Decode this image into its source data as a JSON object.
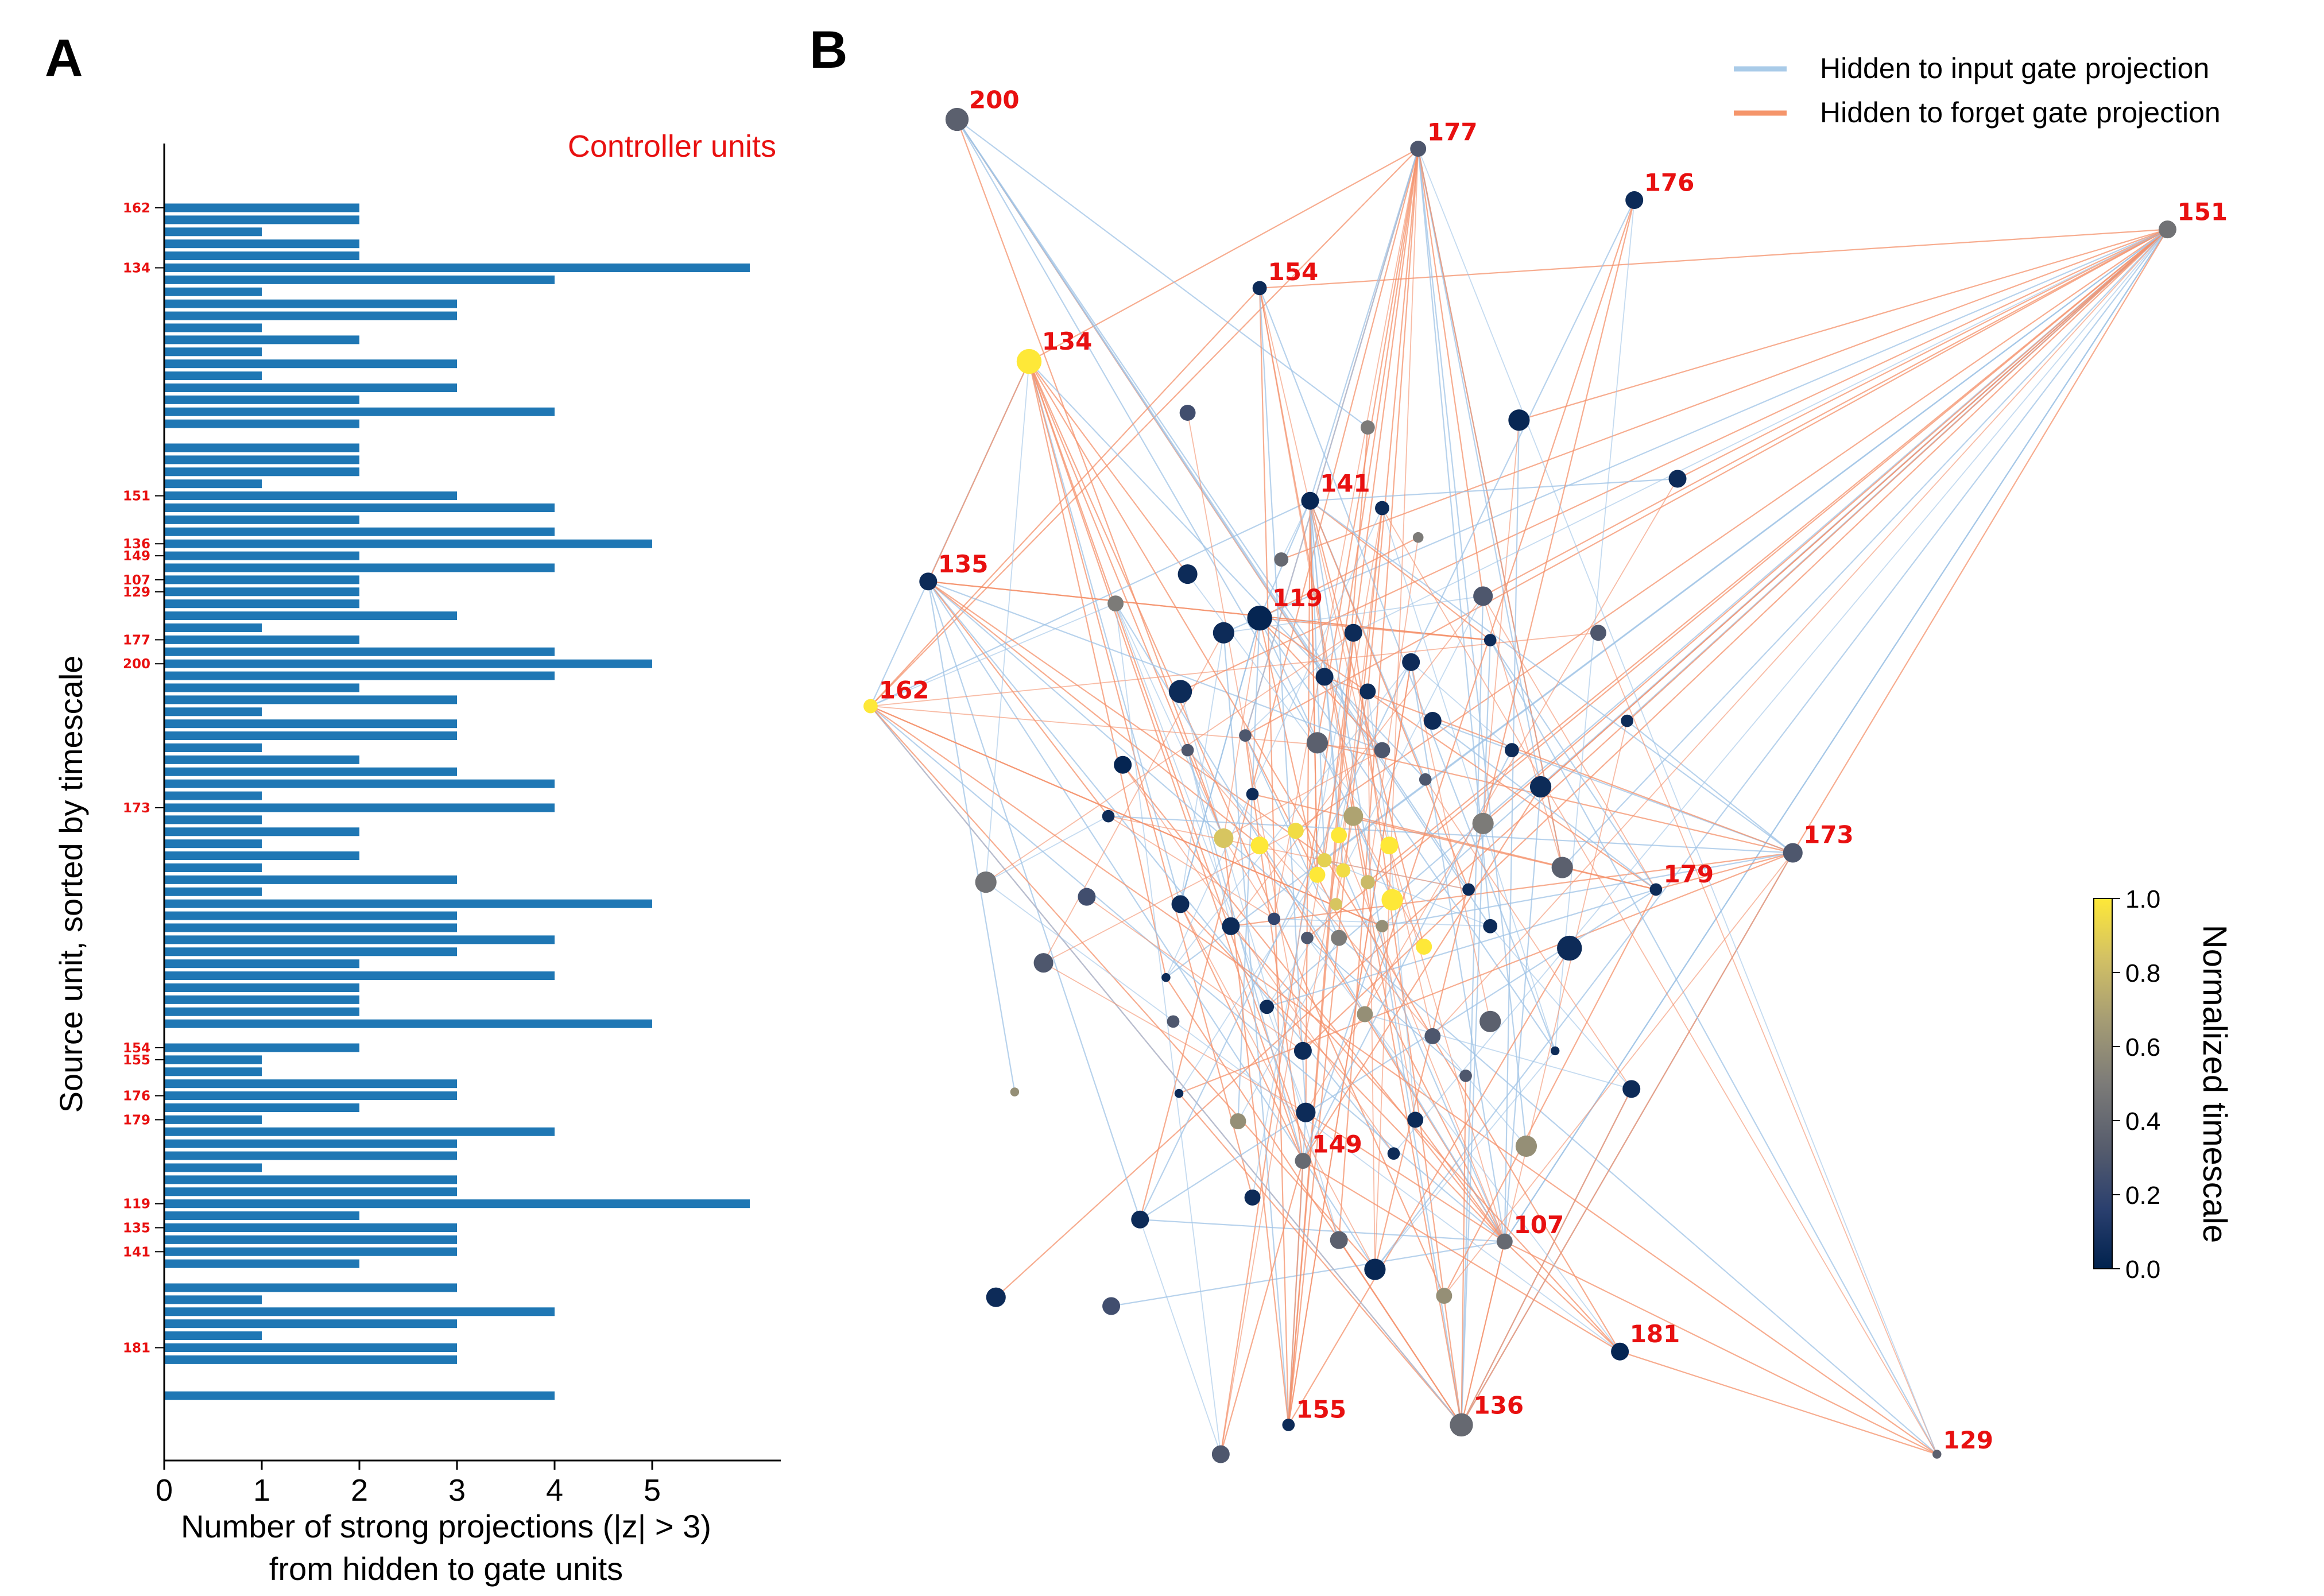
{
  "panel_a_letter": "A",
  "panel_b_letter": "B",
  "chart_data": [
    {
      "type": "bar",
      "orientation": "horizontal",
      "panel": "A",
      "annotation": "Controller units",
      "xlabel_line1": "Number of strong projections (|z| > 3)",
      "xlabel_line2": "from hidden to gate units",
      "ylabel": "Source unit, sorted by timescale",
      "xlim": [
        0,
        6.3
      ],
      "xticks": [
        0,
        1,
        2,
        3,
        4,
        5
      ],
      "ylim_slots": [
        -5,
        104.5
      ],
      "bar_color": "#1f77b4",
      "bars": [
        {
          "slot": 0,
          "value": 2,
          "label": "162"
        },
        {
          "slot": 1,
          "value": 2
        },
        {
          "slot": 2,
          "value": 1
        },
        {
          "slot": 3,
          "value": 2
        },
        {
          "slot": 4,
          "value": 2
        },
        {
          "slot": 5,
          "value": 6,
          "label": "134"
        },
        {
          "slot": 6,
          "value": 4
        },
        {
          "slot": 7,
          "value": 1
        },
        {
          "slot": 8,
          "value": 3
        },
        {
          "slot": 9,
          "value": 3
        },
        {
          "slot": 10,
          "value": 1
        },
        {
          "slot": 11,
          "value": 2
        },
        {
          "slot": 12,
          "value": 1
        },
        {
          "slot": 13,
          "value": 3
        },
        {
          "slot": 14,
          "value": 1
        },
        {
          "slot": 15,
          "value": 3
        },
        {
          "slot": 16,
          "value": 2
        },
        {
          "slot": 17,
          "value": 4
        },
        {
          "slot": 18,
          "value": 2
        },
        {
          "slot": 20,
          "value": 2
        },
        {
          "slot": 21,
          "value": 2
        },
        {
          "slot": 22,
          "value": 2
        },
        {
          "slot": 23,
          "value": 1
        },
        {
          "slot": 24,
          "value": 3,
          "label": "151"
        },
        {
          "slot": 25,
          "value": 4
        },
        {
          "slot": 26,
          "value": 2
        },
        {
          "slot": 27,
          "value": 4
        },
        {
          "slot": 28,
          "value": 5,
          "label": "136"
        },
        {
          "slot": 29,
          "value": 2,
          "label": "149"
        },
        {
          "slot": 30,
          "value": 4
        },
        {
          "slot": 31,
          "value": 2,
          "label": "107"
        },
        {
          "slot": 32,
          "value": 2,
          "label": "129"
        },
        {
          "slot": 33,
          "value": 2
        },
        {
          "slot": 34,
          "value": 3
        },
        {
          "slot": 35,
          "value": 1
        },
        {
          "slot": 36,
          "value": 2,
          "label": "177"
        },
        {
          "slot": 37,
          "value": 4
        },
        {
          "slot": 38,
          "value": 5,
          "label": "200"
        },
        {
          "slot": 39,
          "value": 4
        },
        {
          "slot": 40,
          "value": 2
        },
        {
          "slot": 41,
          "value": 3
        },
        {
          "slot": 42,
          "value": 1
        },
        {
          "slot": 43,
          "value": 3
        },
        {
          "slot": 44,
          "value": 3
        },
        {
          "slot": 45,
          "value": 1
        },
        {
          "slot": 46,
          "value": 2
        },
        {
          "slot": 47,
          "value": 3
        },
        {
          "slot": 48,
          "value": 4
        },
        {
          "slot": 49,
          "value": 1
        },
        {
          "slot": 50,
          "value": 4,
          "label": "173"
        },
        {
          "slot": 51,
          "value": 1
        },
        {
          "slot": 52,
          "value": 2
        },
        {
          "slot": 53,
          "value": 1
        },
        {
          "slot": 54,
          "value": 2
        },
        {
          "slot": 55,
          "value": 1
        },
        {
          "slot": 56,
          "value": 3
        },
        {
          "slot": 57,
          "value": 1
        },
        {
          "slot": 58,
          "value": 5
        },
        {
          "slot": 59,
          "value": 3
        },
        {
          "slot": 60,
          "value": 3
        },
        {
          "slot": 61,
          "value": 4
        },
        {
          "slot": 62,
          "value": 3
        },
        {
          "slot": 63,
          "value": 2
        },
        {
          "slot": 64,
          "value": 4
        },
        {
          "slot": 65,
          "value": 2
        },
        {
          "slot": 66,
          "value": 2
        },
        {
          "slot": 67,
          "value": 2
        },
        {
          "slot": 68,
          "value": 5
        },
        {
          "slot": 70,
          "value": 2,
          "label": "154"
        },
        {
          "slot": 71,
          "value": 1,
          "label": "155"
        },
        {
          "slot": 72,
          "value": 1
        },
        {
          "slot": 73,
          "value": 3
        },
        {
          "slot": 74,
          "value": 3,
          "label": "176"
        },
        {
          "slot": 75,
          "value": 2
        },
        {
          "slot": 76,
          "value": 1,
          "label": "179"
        },
        {
          "slot": 77,
          "value": 4
        },
        {
          "slot": 78,
          "value": 3
        },
        {
          "slot": 79,
          "value": 3
        },
        {
          "slot": 80,
          "value": 1
        },
        {
          "slot": 81,
          "value": 3
        },
        {
          "slot": 82,
          "value": 3
        },
        {
          "slot": 83,
          "value": 6,
          "label": "119"
        },
        {
          "slot": 84,
          "value": 2
        },
        {
          "slot": 85,
          "value": 3,
          "label": "135"
        },
        {
          "slot": 86,
          "value": 3
        },
        {
          "slot": 87,
          "value": 3,
          "label": "141"
        },
        {
          "slot": 88,
          "value": 2
        },
        {
          "slot": 90,
          "value": 3
        },
        {
          "slot": 91,
          "value": 1
        },
        {
          "slot": 92,
          "value": 4
        },
        {
          "slot": 93,
          "value": 3
        },
        {
          "slot": 94,
          "value": 1
        },
        {
          "slot": 95,
          "value": 3,
          "label": "181"
        },
        {
          "slot": 96,
          "value": 3
        },
        {
          "slot": 99,
          "value": 4
        }
      ]
    },
    {
      "type": "network",
      "panel": "B",
      "legend": [
        {
          "label": "Hidden to input gate projection",
          "color": "#a9cbe8"
        },
        {
          "label": "Hidden to forget gate projection",
          "color": "#f5956a"
        }
      ],
      "colorbar": {
        "label": "Normalized timescale",
        "ticks": [
          "0.0",
          "0.2",
          "0.4",
          "0.6",
          "0.8",
          "1.0"
        ],
        "colormap": [
          "#00224e",
          "#2a3f6e",
          "#575d6d",
          "#7c7b78",
          "#a59c74",
          "#d3c164",
          "#fee838"
        ]
      },
      "labeled_nodes": [
        {
          "id": "200",
          "x": 64,
          "y": 8,
          "t": 0.35,
          "s": 13
        },
        {
          "id": "177",
          "x": 96,
          "y": 10,
          "t": 0.3,
          "s": 9
        },
        {
          "id": "176",
          "x": 111,
          "y": 13.5,
          "t": 0.05,
          "s": 10
        },
        {
          "id": "151",
          "x": 148,
          "y": 15.5,
          "t": 0.45,
          "s": 10
        },
        {
          "id": "154",
          "x": 85,
          "y": 19.5,
          "t": 0.05,
          "s": 8
        },
        {
          "id": "134",
          "x": 69,
          "y": 24.5,
          "t": 1.0,
          "s": 14
        },
        {
          "id": "141",
          "x": 88.5,
          "y": 34,
          "t": 0.03,
          "s": 10
        },
        {
          "id": "135",
          "x": 62,
          "y": 39.5,
          "t": 0.05,
          "s": 10
        },
        {
          "id": "119",
          "x": 85,
          "y": 42,
          "t": 0.02,
          "s": 14
        },
        {
          "id": "162",
          "x": 58,
          "y": 48,
          "t": 1.0,
          "s": 8
        },
        {
          "id": "173",
          "x": 122,
          "y": 58,
          "t": 0.3,
          "s": 11
        },
        {
          "id": "179",
          "x": 112.5,
          "y": 60.5,
          "t": 0.05,
          "s": 7
        },
        {
          "id": "149",
          "x": 88,
          "y": 79,
          "t": 0.4,
          "s": 9
        },
        {
          "id": "107",
          "x": 102,
          "y": 84.5,
          "t": 0.4,
          "s": 9
        },
        {
          "id": "181",
          "x": 110,
          "y": 92,
          "t": 0.02,
          "s": 10
        },
        {
          "id": "155",
          "x": 87,
          "y": 97,
          "t": 0.05,
          "s": 7
        },
        {
          "id": "136",
          "x": 99,
          "y": 97,
          "t": 0.4,
          "s": 13
        },
        {
          "id": "129",
          "x": 132,
          "y": 99,
          "t": 0.35,
          "s": 5
        }
      ],
      "other_nodes": [
        [
          80,
          28,
          0.25,
          9
        ],
        [
          92.5,
          29,
          0.5,
          8
        ],
        [
          103,
          28.5,
          0.03,
          12
        ],
        [
          114,
          32.5,
          0.05,
          10
        ],
        [
          93.5,
          34.5,
          0.05,
          8
        ],
        [
          86.5,
          38,
          0.4,
          8
        ],
        [
          96,
          36.5,
          0.5,
          6
        ],
        [
          80,
          39,
          0.05,
          11
        ],
        [
          75,
          41,
          0.5,
          9
        ],
        [
          100.5,
          40.5,
          0.3,
          11
        ],
        [
          82.5,
          43,
          0.05,
          12
        ],
        [
          91.5,
          43,
          0.05,
          10
        ],
        [
          101,
          43.5,
          0.05,
          7
        ],
        [
          108.5,
          43,
          0.3,
          9
        ],
        [
          95.5,
          45,
          0.05,
          10
        ],
        [
          89.5,
          46,
          0.05,
          10
        ],
        [
          92.5,
          47,
          0.05,
          9
        ],
        [
          79.5,
          47,
          0.05,
          13
        ],
        [
          97,
          49,
          0.05,
          10
        ],
        [
          110.5,
          49,
          0.05,
          7
        ],
        [
          84,
          50,
          0.3,
          7
        ],
        [
          89,
          50.5,
          0.35,
          12
        ],
        [
          93.5,
          51,
          0.3,
          9
        ],
        [
          80,
          51,
          0.3,
          7
        ],
        [
          75.5,
          52,
          0.02,
          10
        ],
        [
          102.5,
          51,
          0.05,
          8
        ],
        [
          96.5,
          53,
          0.3,
          7
        ],
        [
          104.5,
          53.5,
          0.05,
          12
        ],
        [
          84.5,
          54,
          0.05,
          7
        ],
        [
          91.5,
          55.5,
          0.7,
          11
        ],
        [
          74.5,
          55.5,
          0.05,
          7
        ],
        [
          100.5,
          56,
          0.5,
          12
        ],
        [
          82.5,
          57,
          0.85,
          11
        ],
        [
          85,
          57.5,
          1.0,
          10
        ],
        [
          87.5,
          56.5,
          0.95,
          9
        ],
        [
          90.5,
          56.8,
          1.0,
          9
        ],
        [
          94,
          57.5,
          1.0,
          10
        ],
        [
          89.5,
          58.5,
          0.9,
          8
        ],
        [
          89,
          59.5,
          1.0,
          9
        ],
        [
          90.8,
          59.2,
          0.95,
          8
        ],
        [
          92.5,
          60,
          0.8,
          8
        ],
        [
          94.2,
          61.2,
          1.0,
          12
        ],
        [
          90.3,
          61.5,
          0.85,
          7
        ],
        [
          66,
          60,
          0.45,
          12
        ],
        [
          73,
          61,
          0.25,
          10
        ],
        [
          79.5,
          61.5,
          0.05,
          10
        ],
        [
          83,
          63,
          0.05,
          10
        ],
        [
          86,
          62.5,
          0.2,
          7
        ],
        [
          88.3,
          63.8,
          0.3,
          7
        ],
        [
          90.5,
          63.8,
          0.5,
          9
        ],
        [
          93.5,
          63,
          0.6,
          7
        ],
        [
          96.4,
          64.4,
          1.0,
          9
        ],
        [
          99.5,
          60.5,
          0.05,
          7
        ],
        [
          101,
          63,
          0.05,
          8
        ],
        [
          106,
          59,
          0.35,
          12
        ],
        [
          106.5,
          64.5,
          0.05,
          14
        ],
        [
          70,
          65.5,
          0.3,
          11
        ],
        [
          78.5,
          66.5,
          0.05,
          5
        ],
        [
          79,
          69.5,
          0.3,
          7
        ],
        [
          85.5,
          68.5,
          0.05,
          8
        ],
        [
          92.3,
          69,
          0.6,
          9
        ],
        [
          97,
          70.5,
          0.3,
          9
        ],
        [
          101,
          69.5,
          0.35,
          12
        ],
        [
          105.5,
          71.5,
          0.05,
          5
        ],
        [
          88,
          71.5,
          0.05,
          10
        ],
        [
          99.3,
          73.2,
          0.3,
          7
        ],
        [
          110.8,
          74.1,
          0.05,
          10
        ],
        [
          68,
          74.3,
          0.6,
          5
        ],
        [
          79.4,
          74.4,
          0.05,
          5
        ],
        [
          88.2,
          75.7,
          0.05,
          11
        ],
        [
          83.5,
          76.3,
          0.6,
          9
        ],
        [
          95.8,
          76.2,
          0.05,
          9
        ],
        [
          94.3,
          78.5,
          0.05,
          7
        ],
        [
          103.5,
          78,
          0.6,
          12
        ],
        [
          84.5,
          81.5,
          0.05,
          9
        ],
        [
          76.7,
          83,
          0.05,
          10
        ],
        [
          90.5,
          84.4,
          0.35,
          10
        ],
        [
          93,
          86.4,
          0.03,
          12
        ],
        [
          66.7,
          88.3,
          0.05,
          11
        ],
        [
          74.7,
          88.9,
          0.25,
          10
        ],
        [
          97.8,
          88.2,
          0.6,
          9
        ],
        [
          82.3,
          99,
          0.3,
          10
        ]
      ]
    }
  ]
}
